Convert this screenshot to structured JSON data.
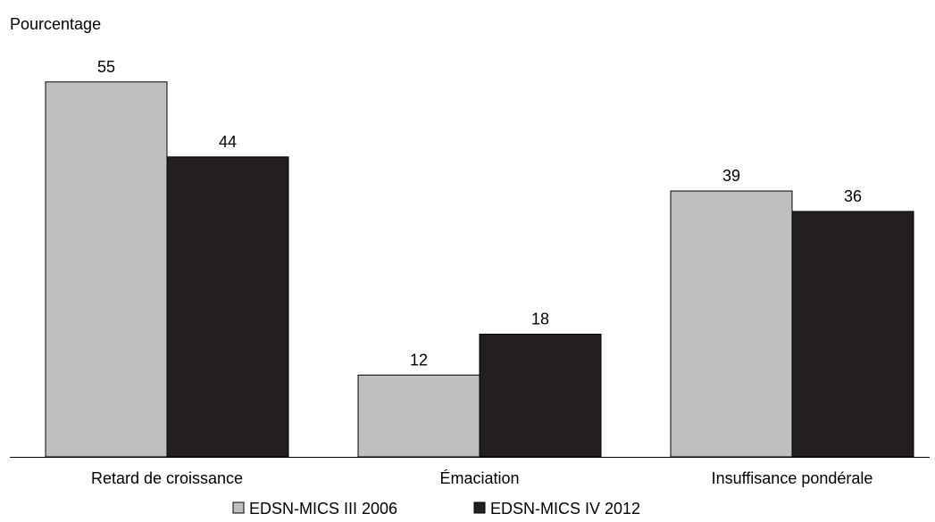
{
  "chart_data": {
    "type": "bar",
    "ylabel": "Pourcentage",
    "xlabel": "",
    "categories": [
      "Retard de croissance",
      "Émaciation",
      "Insuffisance pondérale"
    ],
    "series": [
      {
        "name": "EDSN-MICS III 2006",
        "values": [
          55,
          12,
          39
        ],
        "color": "#bfbfbf"
      },
      {
        "name": "EDSN-MICS IV 2012",
        "values": [
          44,
          18,
          36
        ],
        "color": "#231f20"
      }
    ],
    "ylim": [
      0,
      60
    ],
    "grid": false,
    "legend": "bottom"
  }
}
